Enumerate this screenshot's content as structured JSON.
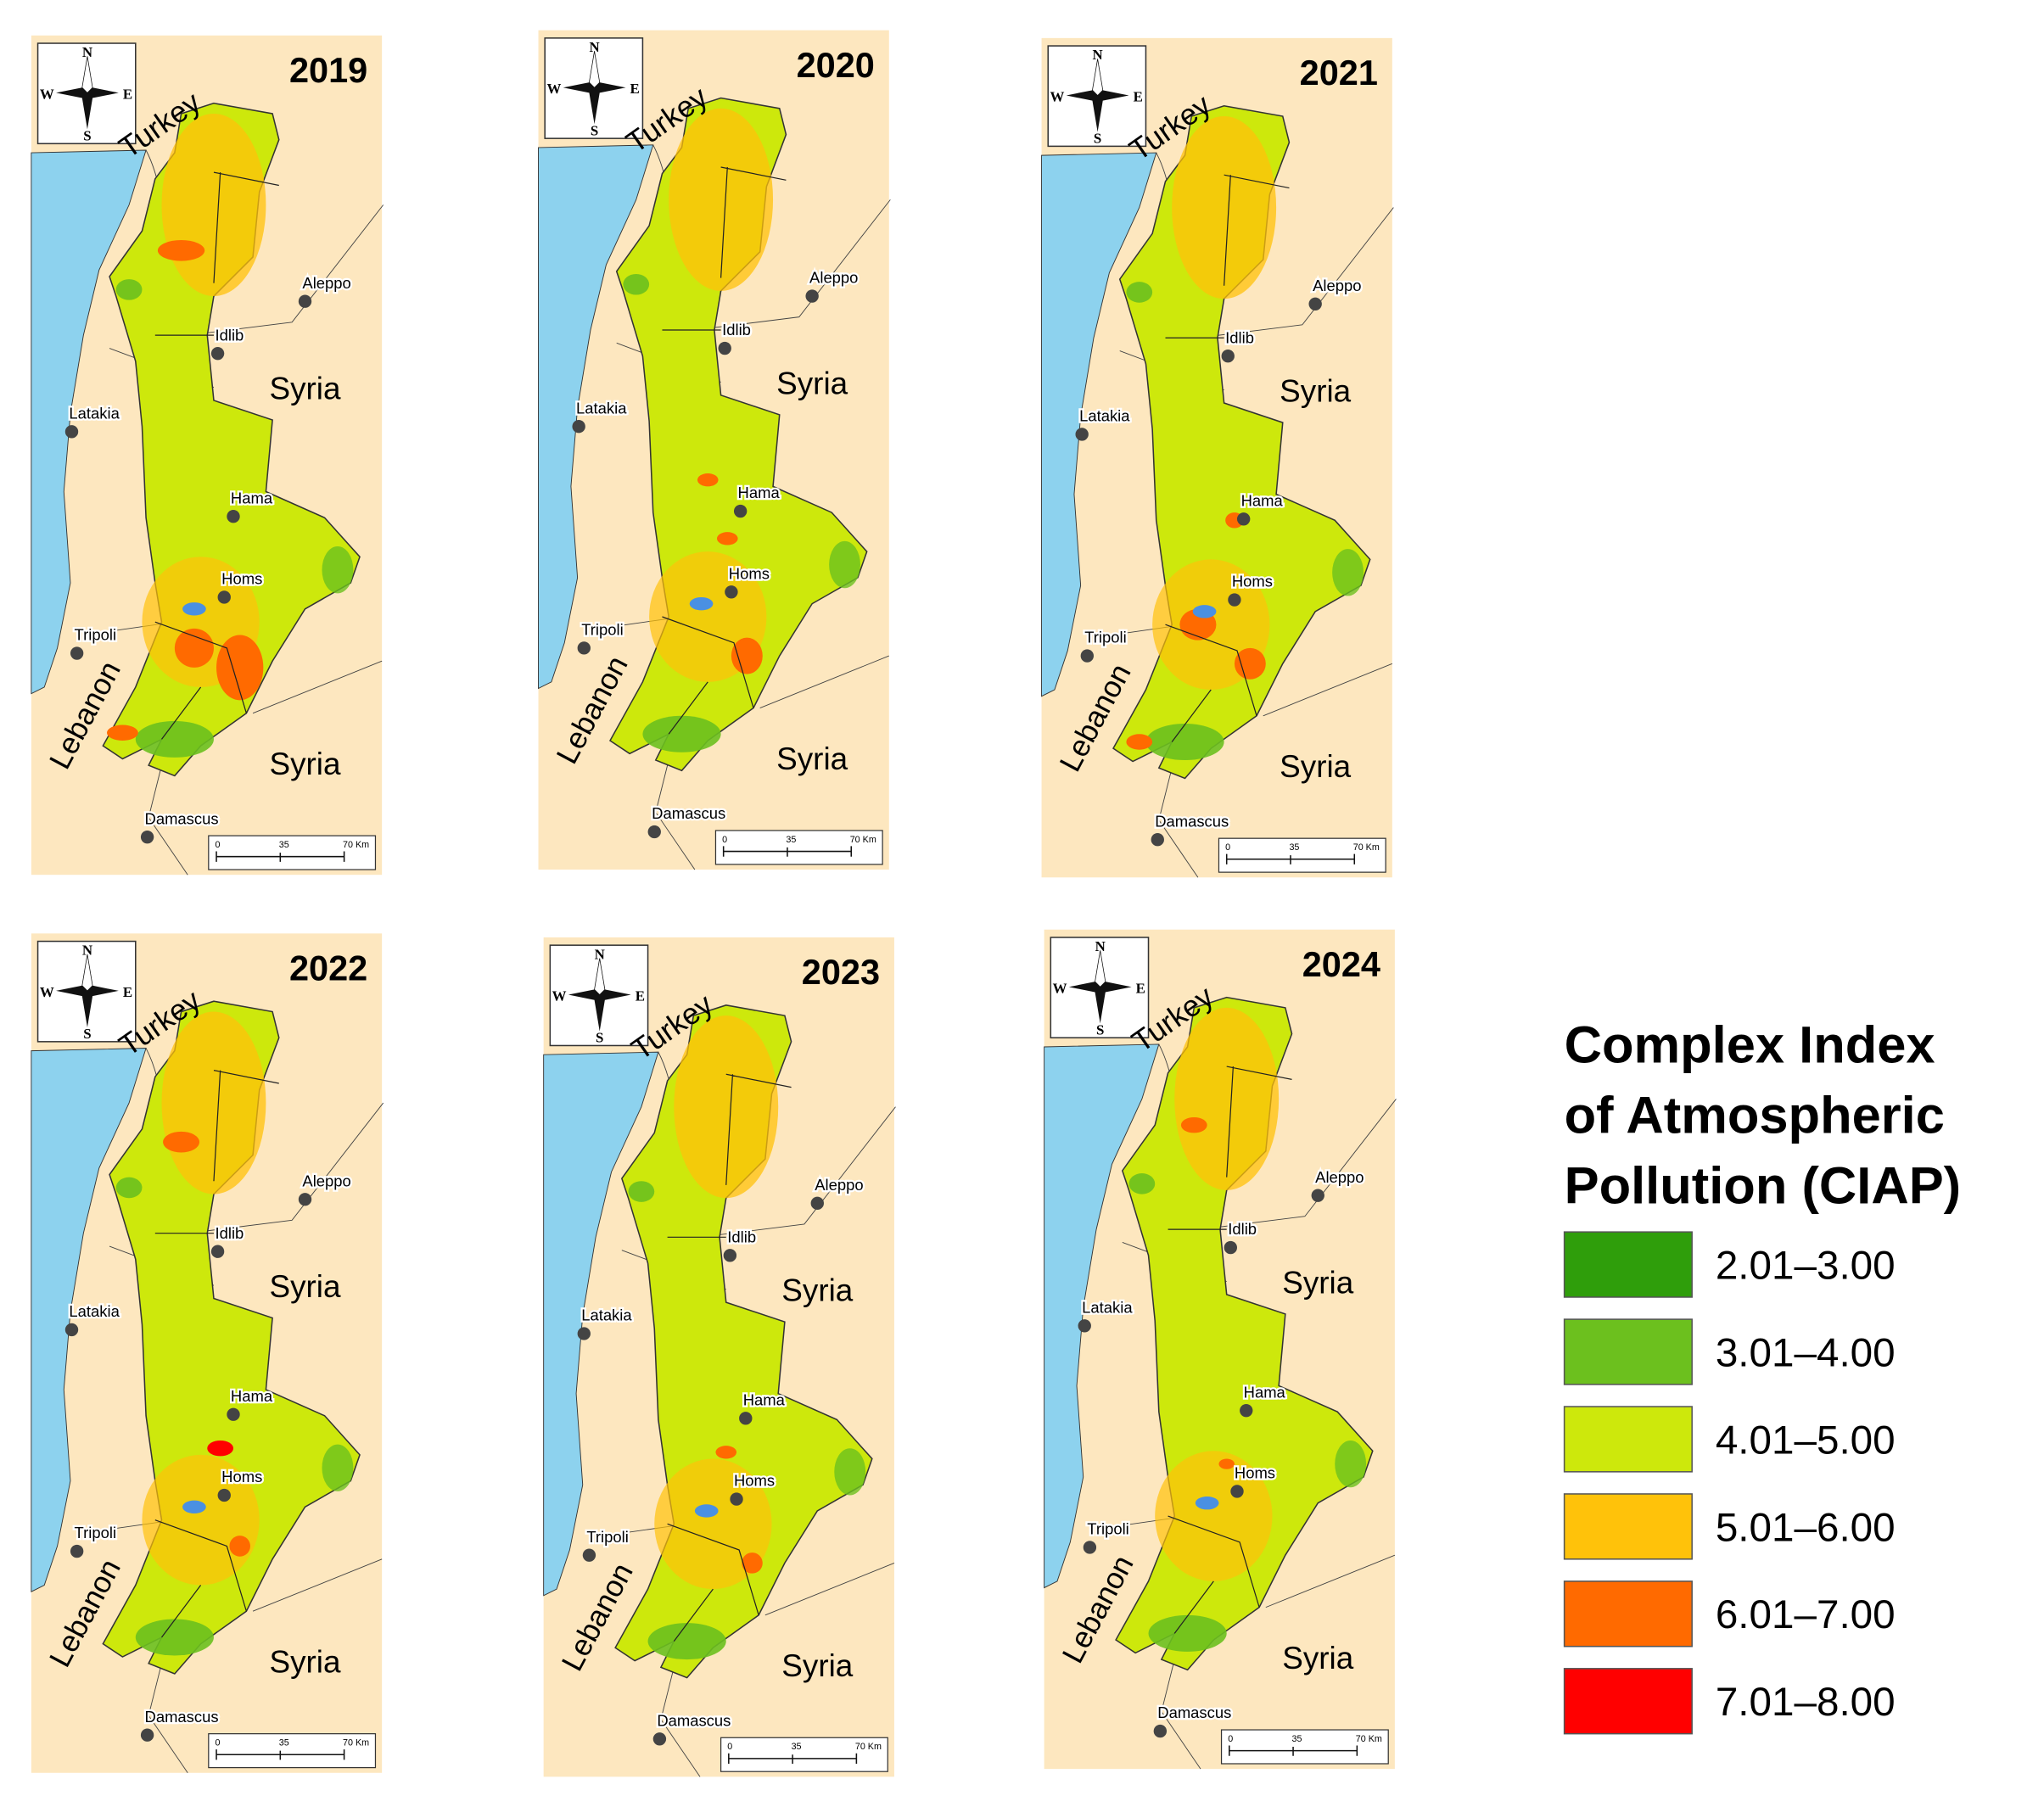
{
  "panels": [
    {
      "year": "2019"
    },
    {
      "year": "2020"
    },
    {
      "year": "2021"
    },
    {
      "year": "2022"
    },
    {
      "year": "2023"
    },
    {
      "year": "2024"
    }
  ],
  "countries": {
    "turkey": "Turkey",
    "syria": "Syria",
    "lebanon": "Lebanon"
  },
  "cities": [
    "Aleppo",
    "Idlib",
    "Latakia",
    "Hama",
    "Homs",
    "Tripoli",
    "Damascus"
  ],
  "compass": {
    "n": "N",
    "s": "S",
    "w": "W",
    "e": "E"
  },
  "scale_bar": {
    "ticks": [
      "0",
      "35",
      "70 Km"
    ]
  },
  "legend": {
    "title": [
      "Complex Index",
      "of Atmospheric",
      "Pollution (CIAP)"
    ],
    "classes": [
      {
        "label": "2.01–3.00",
        "color": "#2f9e0b"
      },
      {
        "label": "3.01–4.00",
        "color": "#6cc01e"
      },
      {
        "label": "4.01–5.00",
        "color": "#cde80c"
      },
      {
        "label": "5.01–6.00",
        "color": "#ffc20a"
      },
      {
        "label": "6.01–7.00",
        "color": "#ff6a00"
      },
      {
        "label": "7.01–8.00",
        "color": "#ff0000"
      }
    ]
  }
}
